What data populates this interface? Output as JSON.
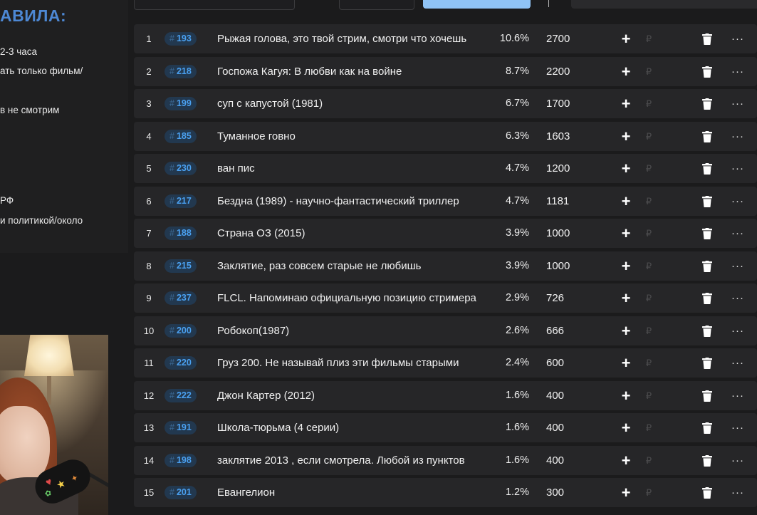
{
  "rules": {
    "title": "АВИЛА:",
    "lines": [
      "2-3 часа",
      "ать только фильм/",
      "в не смотрим",
      "РФ",
      "и политикой/около"
    ]
  },
  "list": {
    "rows": [
      {
        "idx": "1",
        "hash": "#",
        "id": "193",
        "title": "Рыжая голова, это твой стрим, смотри что хочешь",
        "pct": "10.6%",
        "amt": "2700"
      },
      {
        "idx": "2",
        "hash": "#",
        "id": "218",
        "title": "Госпожа Кагуя: В любви как на войне",
        "pct": "8.7%",
        "amt": "2200"
      },
      {
        "idx": "3",
        "hash": "#",
        "id": "199",
        "title": "суп с капустой (1981)",
        "pct": "6.7%",
        "amt": "1700"
      },
      {
        "idx": "4",
        "hash": "#",
        "id": "185",
        "title": "Туманное говно",
        "pct": "6.3%",
        "amt": "1603"
      },
      {
        "idx": "5",
        "hash": "#",
        "id": "230",
        "title": "ван пис",
        "pct": "4.7%",
        "amt": "1200"
      },
      {
        "idx": "6",
        "hash": "#",
        "id": "217",
        "title": "Бездна (1989) - научно-фантастический триллер",
        "pct": "4.7%",
        "amt": "1181"
      },
      {
        "idx": "7",
        "hash": "#",
        "id": "188",
        "title": "Страна ОЗ (2015)",
        "pct": "3.9%",
        "amt": "1000"
      },
      {
        "idx": "8",
        "hash": "#",
        "id": "215",
        "title": "Заклятие, раз совсем старые не любишь",
        "pct": "3.9%",
        "amt": "1000"
      },
      {
        "idx": "9",
        "hash": "#",
        "id": "237",
        "title": "FLCL. Напоминаю официальную позицию стримера",
        "pct": "2.9%",
        "amt": "726"
      },
      {
        "idx": "10",
        "hash": "#",
        "id": "200",
        "title": "Робокоп(1987)",
        "pct": "2.6%",
        "amt": "666"
      },
      {
        "idx": "11",
        "hash": "#",
        "id": "220",
        "title": "Груз 200. Не называй плиз эти фильмы старыми",
        "pct": "2.4%",
        "amt": "600"
      },
      {
        "idx": "12",
        "hash": "#",
        "id": "222",
        "title": "Джон Картер (2012)",
        "pct": "1.6%",
        "amt": "400"
      },
      {
        "idx": "13",
        "hash": "#",
        "id": "191",
        "title": "Школа-тюрьма (4 серии)",
        "pct": "1.6%",
        "amt": "400"
      },
      {
        "idx": "14",
        "hash": "#",
        "id": "198",
        "title": "заклятие 2013 , если смотрела. Любой из пунктов",
        "pct": "1.6%",
        "amt": "400"
      },
      {
        "idx": "15",
        "hash": "#",
        "id": "201",
        "title": "Евангелион",
        "pct": "1.2%",
        "amt": "300"
      }
    ],
    "actions": {
      "add": "+",
      "currency": "₽",
      "more": "···"
    }
  },
  "colors": {
    "accent": "#4aa0f0",
    "badge_bg": "#22384f",
    "row_bg": "#262628",
    "page_bg": "#1b1b1c",
    "rules_title": "#4d88d4"
  },
  "icons": {
    "add": "plus-icon",
    "currency": "ruble-icon",
    "delete": "trash-icon",
    "more": "more-icon"
  }
}
